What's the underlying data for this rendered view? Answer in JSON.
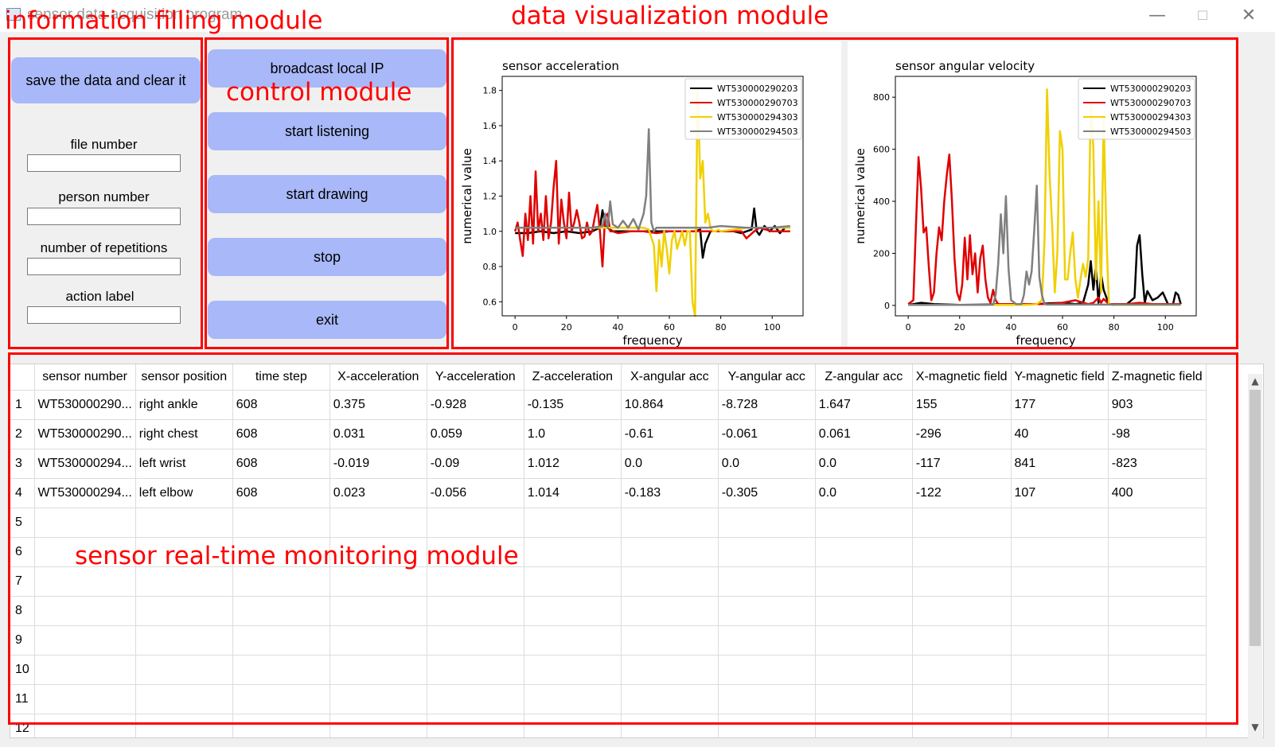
{
  "window": {
    "title": "sensor data acquisition program",
    "minimize_glyph": "—",
    "maximize_glyph": "☐",
    "close_glyph": "✕"
  },
  "annotations": {
    "info": "information filling module",
    "control": "control module",
    "visualization": "data visualization module",
    "monitoring": "sensor real-time monitoring module"
  },
  "info_panel": {
    "save_button": "save the data and clear it",
    "fields": [
      {
        "label": "file number",
        "value": ""
      },
      {
        "label": "person number",
        "value": ""
      },
      {
        "label": "number of repetitions",
        "value": ""
      },
      {
        "label": "action label",
        "value": ""
      }
    ]
  },
  "control_panel": {
    "buttons": [
      "broadcast local IP",
      "start listening",
      "start drawing",
      "stop",
      "exit"
    ]
  },
  "colors": {
    "annotation": "#ff0000",
    "button": "#a8b8f8",
    "series": [
      "#000000",
      "#e00000",
      "#f0d000",
      "#808080"
    ]
  },
  "chart_data": [
    {
      "type": "line",
      "title": "sensor acceleration",
      "xlabel": "frequency",
      "ylabel": "numerical value",
      "xlim": [
        -5,
        112
      ],
      "ylim": [
        0.52,
        1.88
      ],
      "xticks": [
        0,
        20,
        40,
        60,
        80,
        100
      ],
      "yticks": [
        0.6,
        0.8,
        1.0,
        1.2,
        1.4,
        1.6,
        1.8
      ],
      "ytick_labels": [
        "0.6",
        "0.8",
        "1.0",
        "1.2",
        "1.4",
        "1.6",
        "1.8"
      ],
      "legend_position": "top-right",
      "grid": false,
      "series": [
        {
          "name": "WT530000290203",
          "color": "#000000",
          "x": [
            0,
            5,
            10,
            15,
            20,
            25,
            30,
            33,
            34,
            35,
            38,
            45,
            52,
            60,
            68,
            70,
            72,
            73,
            74,
            76,
            80,
            85,
            88,
            90,
            92,
            93,
            94,
            95,
            97,
            99,
            101,
            103,
            105,
            107
          ],
          "y": [
            0.99,
            0.99,
            1.0,
            0.99,
            1.0,
            0.99,
            1.0,
            1.02,
            1.12,
            1.03,
            1.0,
            1.0,
            1.0,
            1.0,
            1.0,
            1.0,
            1.01,
            0.85,
            0.93,
            1.0,
            1.0,
            1.0,
            0.99,
            1.0,
            1.01,
            1.13,
            1.0,
            0.98,
            1.03,
            1.0,
            1.03,
            0.99,
            1.02,
            1.02
          ]
        },
        {
          "name": "WT530000290703",
          "color": "#e00000",
          "x": [
            0,
            1,
            2,
            3,
            4,
            5,
            6,
            7,
            8,
            9,
            10,
            11,
            12,
            13,
            14,
            15,
            16,
            17,
            18,
            19,
            20,
            21,
            22,
            23,
            24,
            25,
            26,
            27,
            28,
            29,
            30,
            31,
            32,
            33,
            34,
            35,
            36,
            37,
            38,
            40,
            45,
            50,
            55,
            60,
            65,
            70,
            75,
            85,
            88,
            90,
            93,
            95,
            100,
            105,
            107
          ],
          "y": [
            1.0,
            1.05,
            0.95,
            0.86,
            1.1,
            0.95,
            1.2,
            0.93,
            1.34,
            1.0,
            1.1,
            0.95,
            1.2,
            0.96,
            1.05,
            1.25,
            1.4,
            0.93,
            1.18,
            1.05,
            0.96,
            1.22,
            1.0,
            1.05,
            1.12,
            1.05,
            0.96,
            0.97,
            1.05,
            0.98,
            1.0,
            1.08,
            1.15,
            1.0,
            0.8,
            1.08,
            1.1,
            1.0,
            1.0,
            0.99,
            1.0,
            1.0,
            0.99,
            1.0,
            1.0,
            1.0,
            1.0,
            1.0,
            1.0,
            0.96,
            1.0,
            1.02,
            1.0,
            1.0,
            1.0
          ]
        },
        {
          "name": "WT530000294303",
          "color": "#f0d000",
          "x": [
            0,
            10,
            20,
            30,
            40,
            45,
            50,
            52,
            54,
            55,
            56,
            57,
            58,
            59,
            60,
            61,
            62,
            63,
            64,
            65,
            66,
            67,
            68,
            69,
            70,
            71,
            72,
            73,
            74,
            75,
            76,
            77,
            78,
            79,
            80,
            85,
            90,
            95,
            100,
            107
          ],
          "y": [
            1.02,
            1.02,
            1.02,
            1.02,
            1.02,
            1.02,
            1.02,
            1.01,
            0.92,
            0.66,
            0.95,
            0.8,
            1.0,
            0.9,
            0.76,
            0.95,
            1.0,
            0.9,
            0.95,
            1.0,
            0.92,
            1.0,
            1.0,
            0.6,
            0.52,
            1.82,
            1.3,
            1.4,
            1.05,
            1.1,
            1.02,
            1.0,
            1.0,
            1.01,
            1.0,
            1.01,
            1.02,
            1.02,
            1.02,
            1.02
          ]
        },
        {
          "name": "WT530000294503",
          "color": "#808080",
          "x": [
            0,
            10,
            20,
            30,
            34,
            35,
            36,
            37,
            38,
            40,
            42,
            44,
            46,
            48,
            50,
            51,
            52,
            53,
            54,
            55,
            57,
            60,
            65,
            70,
            75,
            80,
            90,
            100,
            107
          ],
          "y": [
            1.02,
            1.02,
            1.02,
            1.02,
            1.03,
            1.1,
            1.02,
            1.17,
            1.04,
            1.02,
            1.06,
            1.02,
            1.07,
            1.01,
            1.1,
            1.2,
            1.58,
            1.05,
            1.0,
            1.02,
            1.02,
            1.02,
            1.02,
            1.02,
            1.02,
            1.03,
            1.02,
            1.02,
            1.03
          ]
        }
      ]
    },
    {
      "type": "line",
      "title": "sensor angular velocity",
      "xlabel": "frequency",
      "ylabel": "numerical value",
      "xlim": [
        -5,
        112
      ],
      "ylim": [
        -40,
        880
      ],
      "xticks": [
        0,
        20,
        40,
        60,
        80,
        100
      ],
      "yticks": [
        0,
        200,
        400,
        600,
        800
      ],
      "ytick_labels": [
        "0",
        "200",
        "400",
        "600",
        "800"
      ],
      "legend_position": "top-right",
      "grid": false,
      "series": [
        {
          "name": "WT530000290203",
          "color": "#000000",
          "x": [
            0,
            5,
            10,
            20,
            30,
            40,
            50,
            55,
            60,
            65,
            68,
            70,
            71,
            72,
            73,
            74,
            75,
            76,
            78,
            80,
            85,
            88,
            89,
            90,
            91,
            92,
            93,
            95,
            97,
            99,
            101,
            103,
            104,
            105,
            106
          ],
          "y": [
            2,
            10,
            5,
            2,
            3,
            5,
            5,
            8,
            10,
            5,
            10,
            80,
            170,
            60,
            150,
            10,
            120,
            60,
            5,
            2,
            5,
            30,
            230,
            270,
            120,
            10,
            55,
            20,
            30,
            50,
            5,
            5,
            50,
            40,
            5
          ]
        },
        {
          "name": "WT530000290703",
          "color": "#e00000",
          "x": [
            0,
            2,
            3,
            4,
            5,
            6,
            7,
            8,
            9,
            10,
            11,
            12,
            13,
            14,
            15,
            16,
            17,
            18,
            19,
            20,
            21,
            22,
            23,
            24,
            25,
            26,
            27,
            28,
            29,
            30,
            31,
            32,
            33,
            34,
            35,
            36,
            37,
            40,
            45,
            50,
            55,
            60,
            65,
            70,
            72,
            74,
            75,
            76,
            78,
            80,
            85,
            90,
            95,
            100,
            106
          ],
          "y": [
            5,
            20,
            300,
            570,
            450,
            280,
            300,
            150,
            20,
            50,
            200,
            300,
            250,
            400,
            500,
            580,
            400,
            180,
            50,
            20,
            80,
            260,
            100,
            270,
            120,
            200,
            50,
            180,
            230,
            100,
            30,
            10,
            60,
            20,
            5,
            5,
            5,
            5,
            5,
            5,
            5,
            10,
            20,
            5,
            10,
            30,
            10,
            25,
            5,
            5,
            5,
            10,
            5,
            5,
            5
          ]
        },
        {
          "name": "WT530000294303",
          "color": "#f0d000",
          "x": [
            0,
            10,
            20,
            30,
            40,
            45,
            48,
            50,
            52,
            53,
            54,
            55,
            56,
            57,
            58,
            59,
            60,
            61,
            62,
            63,
            64,
            65,
            66,
            67,
            68,
            69,
            70,
            71,
            72,
            73,
            74,
            75,
            76,
            77,
            78,
            80,
            85,
            90,
            100,
            106
          ],
          "y": [
            2,
            2,
            2,
            2,
            2,
            2,
            3,
            5,
            20,
            250,
            830,
            500,
            300,
            50,
            200,
            670,
            600,
            100,
            100,
            200,
            280,
            100,
            30,
            100,
            160,
            110,
            180,
            780,
            600,
            100,
            400,
            50,
            730,
            300,
            5,
            2,
            2,
            2,
            2,
            2
          ]
        },
        {
          "name": "WT530000294503",
          "color": "#808080",
          "x": [
            0,
            10,
            20,
            30,
            33,
            34,
            35,
            36,
            37,
            38,
            39,
            40,
            42,
            44,
            45,
            46,
            47,
            48,
            49,
            50,
            51,
            52,
            53,
            54,
            55,
            60,
            70,
            80,
            90,
            100,
            106
          ],
          "y": [
            2,
            2,
            2,
            2,
            3,
            40,
            160,
            350,
            200,
            420,
            140,
            20,
            5,
            5,
            40,
            130,
            80,
            130,
            290,
            460,
            110,
            40,
            5,
            3,
            3,
            3,
            3,
            3,
            3,
            3,
            3
          ]
        }
      ]
    }
  ],
  "table": {
    "headers": [
      "sensor number",
      "sensor position",
      "time step",
      "X-acceleration",
      "Y-acceleration",
      "Z-acceleration",
      "X-angular acc",
      "Y-angular acc",
      "Z-angular acc",
      "X-magnetic field",
      "Y-magnetic field",
      "Z-magnetic field"
    ],
    "row_numbers": [
      "1",
      "2",
      "3",
      "4",
      "5",
      "6",
      "7",
      "8",
      "9",
      "10",
      "11",
      "12"
    ],
    "rows": [
      [
        "WT530000290...",
        "right ankle",
        "608",
        "0.375",
        "-0.928",
        "-0.135",
        "10.864",
        "-8.728",
        "1.647",
        "155",
        "177",
        "903"
      ],
      [
        "WT530000290...",
        "right chest",
        "608",
        "0.031",
        "0.059",
        "1.0",
        "-0.61",
        "-0.061",
        "0.061",
        "-296",
        "40",
        "-98"
      ],
      [
        "WT530000294...",
        "left wrist",
        "608",
        "-0.019",
        "-0.09",
        "1.012",
        "0.0",
        "0.0",
        "0.0",
        "-117",
        "841",
        "-823"
      ],
      [
        "WT530000294...",
        "left elbow",
        "608",
        "0.023",
        "-0.056",
        "1.014",
        "-0.183",
        "-0.305",
        "0.0",
        "-122",
        "107",
        "400"
      ],
      [
        "",
        "",
        "",
        "",
        "",
        "",
        "",
        "",
        "",
        "",
        "",
        ""
      ],
      [
        "",
        "",
        "",
        "",
        "",
        "",
        "",
        "",
        "",
        "",
        "",
        ""
      ],
      [
        "",
        "",
        "",
        "",
        "",
        "",
        "",
        "",
        "",
        "",
        "",
        ""
      ],
      [
        "",
        "",
        "",
        "",
        "",
        "",
        "",
        "",
        "",
        "",
        "",
        ""
      ],
      [
        "",
        "",
        "",
        "",
        "",
        "",
        "",
        "",
        "",
        "",
        "",
        ""
      ],
      [
        "",
        "",
        "",
        "",
        "",
        "",
        "",
        "",
        "",
        "",
        "",
        ""
      ],
      [
        "",
        "",
        "",
        "",
        "",
        "",
        "",
        "",
        "",
        "",
        "",
        ""
      ],
      [
        "",
        "",
        "",
        "",
        "",
        "",
        "",
        "",
        "",
        "",
        "",
        ""
      ]
    ]
  }
}
